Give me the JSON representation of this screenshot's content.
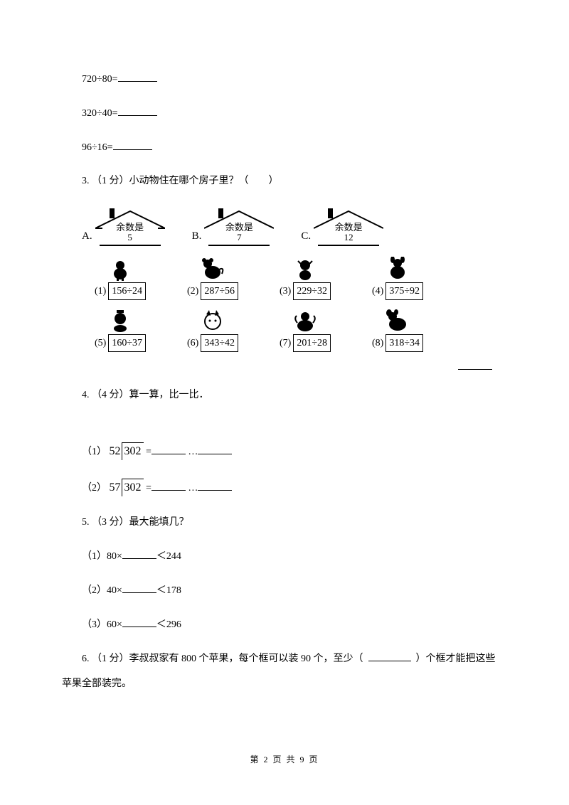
{
  "equations": {
    "eq1": "720÷80=",
    "eq2": "320÷40=",
    "eq3": "96÷16="
  },
  "q3": {
    "prefix": "3.  （1 分）小动物住在哪个房子里？（　　）",
    "houses": [
      {
        "letter": "A.",
        "line1": "余数是",
        "line2": "5"
      },
      {
        "letter": "B.",
        "line1": "余数是",
        "line2": "7"
      },
      {
        "letter": "C.",
        "line1": "余数是",
        "line2": "12"
      }
    ],
    "row1": [
      {
        "num": "(1)",
        "expr": "156÷24"
      },
      {
        "num": "(2)",
        "expr": "287÷56"
      },
      {
        "num": "(3)",
        "expr": "229÷32"
      },
      {
        "num": "(4)",
        "expr": "375÷92"
      }
    ],
    "row2": [
      {
        "num": "(5)",
        "expr": "160÷37"
      },
      {
        "num": "(6)",
        "expr": "343÷42"
      },
      {
        "num": "(7)",
        "expr": "201÷28"
      },
      {
        "num": "(8)",
        "expr": "318÷34"
      }
    ]
  },
  "q4": {
    "title": "4.  （4 分）算一算，比一比．",
    "items": [
      {
        "label": "（1）",
        "divisor": "52",
        "dividend": "302"
      },
      {
        "label": "（2）",
        "divisor": "57",
        "dividend": "302"
      }
    ],
    "equals": " =",
    "dots": "…"
  },
  "q5": {
    "title": "5.  （3 分）最大能填几？",
    "items": [
      {
        "label": "（1）80×",
        "tail": "＜244"
      },
      {
        "label": "（2）40×",
        "tail": "＜178"
      },
      {
        "label": "（3）60×",
        "tail": "＜296"
      }
    ]
  },
  "q6": {
    "pre": "6.  （1 分）李叔叔家有 800 个苹果，每个框可以装 90 个，至少（",
    "post": "）个框才能把这些",
    "line2": "苹果全部装完。"
  },
  "footer": "第 2 页 共 9 页"
}
